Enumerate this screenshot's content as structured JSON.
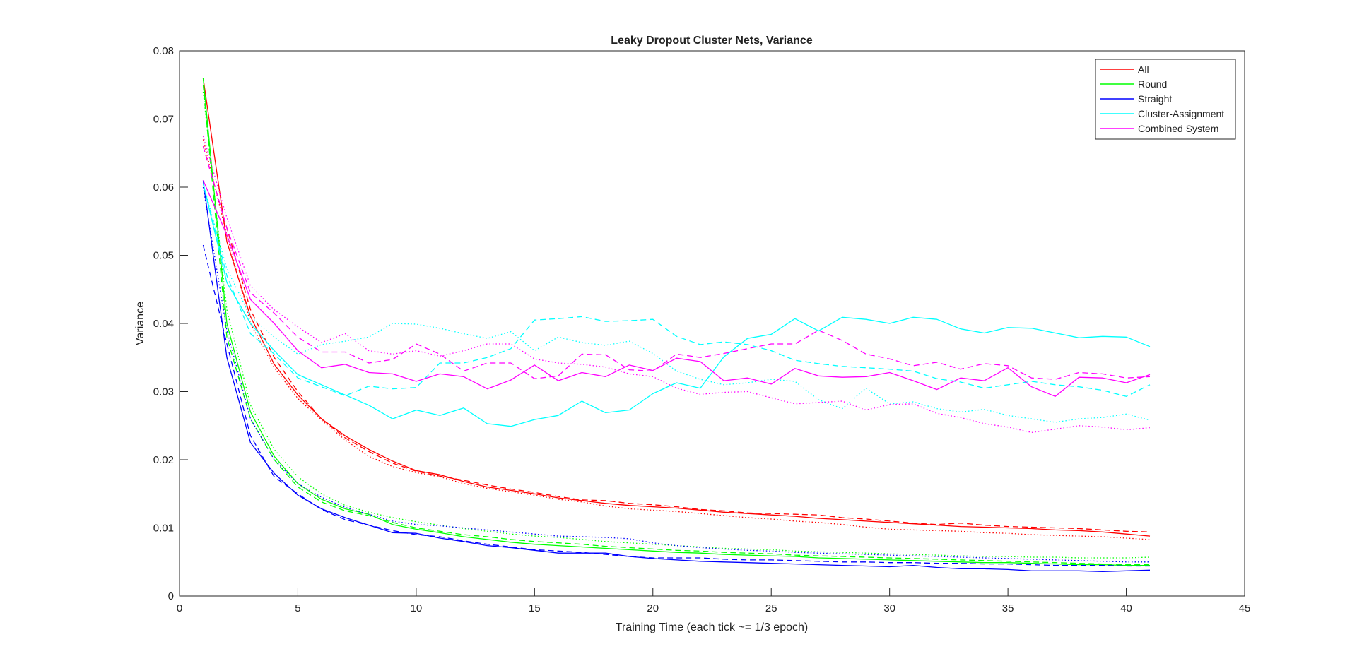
{
  "chart_data": {
    "type": "line",
    "title": "Leaky Dropout Cluster Nets, Variance",
    "xlabel": "Training Time (each tick ~= 1/3 epoch)",
    "ylabel": "Variance",
    "xlim": [
      0,
      45
    ],
    "ylim": [
      0,
      0.08
    ],
    "xticks": [
      "0",
      "5",
      "10",
      "15",
      "20",
      "25",
      "30",
      "35",
      "40",
      "45"
    ],
    "yticks": [
      "0",
      "0.01",
      "0.02",
      "0.03",
      "0.04",
      "0.05",
      "0.06",
      "0.07",
      "0.08"
    ],
    "grid": false,
    "legend_position": "top-right",
    "colors": {
      "All": "#ff0000",
      "Round": "#00ff00",
      "Straight": "#0000ff",
      "Cluster-Assignment": "#00ffff",
      "Combined System": "#ff00ff"
    },
    "x": [
      1,
      2,
      3,
      4,
      5,
      6,
      7,
      8,
      9,
      10,
      11,
      12,
      13,
      14,
      15,
      16,
      17,
      18,
      19,
      20,
      21,
      22,
      23,
      24,
      25,
      26,
      27,
      28,
      29,
      30,
      31,
      32,
      33,
      34,
      35,
      36,
      37,
      38,
      39,
      40,
      41
    ],
    "series": [
      {
        "name": "All",
        "color": "#ff0000",
        "style": "solid",
        "values": [
          0.076,
          0.052,
          0.041,
          0.034,
          0.0295,
          0.026,
          0.0235,
          0.0215,
          0.0198,
          0.0184,
          0.0178,
          0.0168,
          0.016,
          0.0155,
          0.015,
          0.0144,
          0.014,
          0.0136,
          0.0133,
          0.0131,
          0.0129,
          0.0126,
          0.0123,
          0.0121,
          0.0119,
          0.0117,
          0.0114,
          0.0112,
          0.011,
          0.0108,
          0.0106,
          0.0104,
          0.0102,
          0.0101,
          0.01,
          0.0099,
          0.0097,
          0.0096,
          0.0094,
          0.0091,
          0.0088
        ]
      },
      {
        "name": "",
        "color": "#ff0000",
        "style": "dashed",
        "values": [
          0.066,
          0.054,
          0.042,
          0.035,
          0.03,
          0.026,
          0.0232,
          0.0212,
          0.0195,
          0.0183,
          0.0176,
          0.017,
          0.0163,
          0.0157,
          0.0152,
          0.0146,
          0.0141,
          0.014,
          0.0136,
          0.0134,
          0.0131,
          0.0127,
          0.0125,
          0.0122,
          0.0121,
          0.012,
          0.0119,
          0.0115,
          0.0113,
          0.011,
          0.0107,
          0.0105,
          0.0107,
          0.0104,
          0.0102,
          0.0101,
          0.01,
          0.0099,
          0.0097,
          0.0095,
          0.0094
        ]
      },
      {
        "name": "",
        "color": "#ff0000",
        "style": "dotted",
        "values": [
          0.067,
          0.053,
          0.04,
          0.0335,
          0.029,
          0.0258,
          0.0229,
          0.0205,
          0.019,
          0.0181,
          0.0175,
          0.0165,
          0.0158,
          0.0153,
          0.0148,
          0.0142,
          0.0138,
          0.0132,
          0.0128,
          0.0126,
          0.0124,
          0.0121,
          0.0118,
          0.0115,
          0.0113,
          0.011,
          0.0108,
          0.0105,
          0.0101,
          0.0098,
          0.0097,
          0.0096,
          0.0095,
          0.0093,
          0.0092,
          0.009,
          0.0089,
          0.0088,
          0.0087,
          0.0085,
          0.0083
        ]
      },
      {
        "name": "Round",
        "color": "#00ff00",
        "style": "solid",
        "values": [
          0.076,
          0.04,
          0.027,
          0.0205,
          0.0165,
          0.0142,
          0.0128,
          0.012,
          0.0105,
          0.0098,
          0.0093,
          0.0087,
          0.0083,
          0.0079,
          0.0076,
          0.0074,
          0.0072,
          0.007,
          0.0068,
          0.0066,
          0.0064,
          0.0063,
          0.0061,
          0.006,
          0.0059,
          0.0058,
          0.0056,
          0.0055,
          0.0054,
          0.0053,
          0.0052,
          0.0051,
          0.005,
          0.0049,
          0.0049,
          0.0048,
          0.0047,
          0.0046,
          0.0046,
          0.0045,
          0.0045
        ]
      },
      {
        "name": "",
        "color": "#00ff00",
        "style": "dashed",
        "values": [
          0.075,
          0.038,
          0.026,
          0.02,
          0.016,
          0.0138,
          0.0125,
          0.0118,
          0.0108,
          0.01,
          0.0095,
          0.009,
          0.0087,
          0.0083,
          0.008,
          0.0078,
          0.0076,
          0.0073,
          0.0071,
          0.0069,
          0.0067,
          0.0066,
          0.0064,
          0.0063,
          0.0062,
          0.006,
          0.0059,
          0.0058,
          0.0057,
          0.0056,
          0.0055,
          0.0054,
          0.0053,
          0.0052,
          0.0051,
          0.005,
          0.0049,
          0.0048,
          0.0047,
          0.0046,
          0.0046
        ]
      },
      {
        "name": "",
        "color": "#00ff00",
        "style": "dotted",
        "values": [
          0.074,
          0.042,
          0.028,
          0.0215,
          0.0175,
          0.015,
          0.0133,
          0.0123,
          0.0115,
          0.0109,
          0.0104,
          0.0099,
          0.0095,
          0.0091,
          0.0088,
          0.0086,
          0.0083,
          0.008,
          0.0078,
          0.0076,
          0.0074,
          0.0072,
          0.007,
          0.0069,
          0.0068,
          0.0066,
          0.0065,
          0.0064,
          0.0063,
          0.0062,
          0.0061,
          0.006,
          0.0059,
          0.0058,
          0.0058,
          0.0057,
          0.0057,
          0.0056,
          0.0056,
          0.0056,
          0.0057
        ]
      },
      {
        "name": "Straight",
        "color": "#0000ff",
        "style": "solid",
        "values": [
          0.061,
          0.035,
          0.0225,
          0.018,
          0.0148,
          0.0128,
          0.0115,
          0.0104,
          0.0093,
          0.0092,
          0.0085,
          0.008,
          0.0074,
          0.0071,
          0.0067,
          0.0063,
          0.0063,
          0.0063,
          0.0058,
          0.0055,
          0.0053,
          0.0051,
          0.005,
          0.0049,
          0.0048,
          0.0047,
          0.0046,
          0.0045,
          0.0044,
          0.0043,
          0.0045,
          0.0042,
          0.004,
          0.004,
          0.0039,
          0.0037,
          0.0037,
          0.0037,
          0.0036,
          0.0037,
          0.0038
        ]
      },
      {
        "name": "",
        "color": "#0000ff",
        "style": "dashed",
        "values": [
          0.0515,
          0.037,
          0.0235,
          0.0175,
          0.015,
          0.0127,
          0.0112,
          0.0104,
          0.0096,
          0.009,
          0.0087,
          0.0081,
          0.0076,
          0.0072,
          0.0068,
          0.0066,
          0.0064,
          0.0061,
          0.0058,
          0.0056,
          0.0056,
          0.0056,
          0.0054,
          0.0053,
          0.0053,
          0.0052,
          0.0051,
          0.005,
          0.005,
          0.0049,
          0.0049,
          0.0048,
          0.0048,
          0.0047,
          0.0047,
          0.0046,
          0.0045,
          0.0045,
          0.0045,
          0.0044,
          0.0044
        ]
      },
      {
        "name": "",
        "color": "#0000ff",
        "style": "dotted",
        "values": [
          0.06,
          0.039,
          0.026,
          0.02,
          0.0165,
          0.0145,
          0.013,
          0.012,
          0.011,
          0.0105,
          0.0103,
          0.01,
          0.0097,
          0.0094,
          0.0091,
          0.0088,
          0.0087,
          0.0086,
          0.0084,
          0.0078,
          0.0074,
          0.0071,
          0.0069,
          0.0067,
          0.0066,
          0.0064,
          0.0063,
          0.0062,
          0.0061,
          0.006,
          0.0059,
          0.0058,
          0.0057,
          0.0056,
          0.0055,
          0.0054,
          0.0053,
          0.0052,
          0.0051,
          0.005,
          0.005
        ]
      },
      {
        "name": "Cluster-Assignment",
        "color": "#00ffff",
        "style": "solid",
        "values": [
          0.0605,
          0.046,
          0.04,
          0.036,
          0.0325,
          0.031,
          0.0295,
          0.028,
          0.026,
          0.0273,
          0.0265,
          0.0276,
          0.0253,
          0.0249,
          0.0259,
          0.0265,
          0.0286,
          0.0269,
          0.0273,
          0.0297,
          0.0313,
          0.0305,
          0.0351,
          0.0378,
          0.0384,
          0.0407,
          0.0389,
          0.0409,
          0.0406,
          0.04,
          0.0409,
          0.0406,
          0.0392,
          0.0386,
          0.0394,
          0.0393,
          0.0386,
          0.0379,
          0.0381,
          0.038,
          0.0366
        ]
      },
      {
        "name": "",
        "color": "#00ffff",
        "style": "dashed",
        "values": [
          0.0605,
          0.047,
          0.0385,
          0.0355,
          0.032,
          0.0307,
          0.0294,
          0.0308,
          0.0304,
          0.0306,
          0.0342,
          0.0342,
          0.035,
          0.0363,
          0.0405,
          0.0407,
          0.041,
          0.0403,
          0.0404,
          0.0406,
          0.0381,
          0.0369,
          0.0373,
          0.0369,
          0.036,
          0.0346,
          0.0341,
          0.0337,
          0.0335,
          0.0333,
          0.033,
          0.0319,
          0.0314,
          0.0305,
          0.031,
          0.0315,
          0.031,
          0.0307,
          0.0302,
          0.0293,
          0.031
        ]
      },
      {
        "name": "",
        "color": "#00ffff",
        "style": "dotted",
        "values": [
          0.0605,
          0.048,
          0.041,
          0.038,
          0.0355,
          0.0369,
          0.0374,
          0.038,
          0.04,
          0.0399,
          0.0393,
          0.0385,
          0.0378,
          0.0388,
          0.036,
          0.038,
          0.0372,
          0.0368,
          0.0374,
          0.0356,
          0.033,
          0.0318,
          0.031,
          0.0313,
          0.0318,
          0.0315,
          0.0288,
          0.0275,
          0.0305,
          0.0282,
          0.0285,
          0.0275,
          0.027,
          0.0274,
          0.0265,
          0.026,
          0.0255,
          0.026,
          0.0262,
          0.0267,
          0.0258
        ]
      },
      {
        "name": "Combined System",
        "color": "#ff00ff",
        "style": "solid",
        "values": [
          0.061,
          0.053,
          0.0435,
          0.04,
          0.036,
          0.0335,
          0.034,
          0.0328,
          0.0326,
          0.0315,
          0.0326,
          0.0322,
          0.0304,
          0.0317,
          0.0339,
          0.0316,
          0.0328,
          0.0322,
          0.0339,
          0.0331,
          0.0349,
          0.0344,
          0.0316,
          0.032,
          0.0311,
          0.0334,
          0.0323,
          0.0321,
          0.0322,
          0.0328,
          0.0316,
          0.0303,
          0.032,
          0.0316,
          0.0335,
          0.0307,
          0.0293,
          0.0321,
          0.032,
          0.0313,
          0.0325
        ]
      },
      {
        "name": "",
        "color": "#ff00ff",
        "style": "dashed",
        "values": [
          0.066,
          0.054,
          0.0445,
          0.0415,
          0.038,
          0.0358,
          0.0358,
          0.0342,
          0.0347,
          0.037,
          0.0355,
          0.033,
          0.0342,
          0.0342,
          0.0319,
          0.0323,
          0.0355,
          0.0354,
          0.0332,
          0.033,
          0.0355,
          0.035,
          0.0356,
          0.0363,
          0.037,
          0.037,
          0.039,
          0.0375,
          0.0355,
          0.0348,
          0.0338,
          0.0343,
          0.0333,
          0.0341,
          0.0338,
          0.032,
          0.0318,
          0.0328,
          0.0326,
          0.032,
          0.0322
        ]
      },
      {
        "name": "",
        "color": "#ff00ff",
        "style": "dotted",
        "values": [
          0.0675,
          0.0555,
          0.0455,
          0.042,
          0.0395,
          0.0372,
          0.0385,
          0.036,
          0.0355,
          0.036,
          0.0352,
          0.036,
          0.037,
          0.037,
          0.0348,
          0.0342,
          0.034,
          0.0336,
          0.0326,
          0.0322,
          0.0305,
          0.0296,
          0.0299,
          0.03,
          0.0291,
          0.0282,
          0.0284,
          0.0286,
          0.0273,
          0.0281,
          0.0282,
          0.0268,
          0.0262,
          0.0253,
          0.0248,
          0.024,
          0.0245,
          0.025,
          0.0248,
          0.0244,
          0.0247
        ]
      }
    ]
  }
}
